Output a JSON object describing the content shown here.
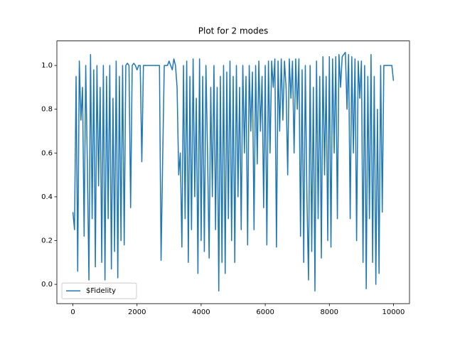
{
  "chart_data": {
    "type": "line",
    "title": "Plot for 2 modes",
    "x": [
      0,
      50,
      100,
      150,
      200,
      250,
      300,
      350,
      400,
      450,
      500,
      550,
      600,
      650,
      700,
      750,
      800,
      850,
      900,
      950,
      1000,
      1050,
      1100,
      1150,
      1200,
      1250,
      1300,
      1350,
      1400,
      1450,
      1500,
      1550,
      1600,
      1650,
      1700,
      1750,
      1800,
      1850,
      1900,
      1950,
      2000,
      2050,
      2100,
      2150,
      2200,
      2250,
      2300,
      2350,
      2400,
      2450,
      2500,
      2550,
      2600,
      2650,
      2700,
      2750,
      2800,
      2850,
      2900,
      2950,
      3000,
      3050,
      3100,
      3150,
      3200,
      3250,
      3300,
      3350,
      3400,
      3450,
      3500,
      3550,
      3600,
      3650,
      3700,
      3750,
      3800,
      3850,
      3900,
      3950,
      4000,
      4050,
      4100,
      4150,
      4200,
      4250,
      4300,
      4350,
      4400,
      4450,
      4500,
      4550,
      4600,
      4650,
      4700,
      4750,
      4800,
      4850,
      4900,
      4950,
      5000,
      5050,
      5100,
      5150,
      5200,
      5250,
      5300,
      5350,
      5400,
      5450,
      5500,
      5550,
      5600,
      5650,
      5700,
      5750,
      5800,
      5850,
      5900,
      5950,
      6000,
      6050,
      6100,
      6150,
      6200,
      6250,
      6300,
      6350,
      6400,
      6450,
      6500,
      6550,
      6600,
      6650,
      6700,
      6750,
      6800,
      6850,
      6900,
      6950,
      7000,
      7050,
      7100,
      7150,
      7200,
      7250,
      7300,
      7350,
      7400,
      7450,
      7500,
      7550,
      7600,
      7650,
      7700,
      7750,
      7800,
      7850,
      7900,
      7950,
      8000,
      8050,
      8100,
      8150,
      8200,
      8250,
      8300,
      8350,
      8400,
      8450,
      8500,
      8550,
      8600,
      8650,
      8700,
      8750,
      8800,
      8850,
      8900,
      8950,
      9000,
      9050,
      9100,
      9150,
      9200,
      9250,
      9300,
      9350,
      9400,
      9450,
      9500,
      9550,
      9600,
      9650,
      9700,
      9750,
      9800,
      9850,
      9900,
      9950,
      10000
    ],
    "series": [
      {
        "name": "$Fidelity",
        "color": "#1f77b4",
        "values": [
          0.33,
          0.25,
          0.95,
          0.06,
          1.02,
          0.75,
          0.9,
          0.22,
          1.0,
          0.55,
          0.02,
          1.05,
          0.3,
          0.98,
          0.08,
          1.0,
          0.45,
          0.9,
          0.1,
          1.0,
          0.02,
          0.95,
          0.3,
          1.0,
          0.07,
          0.85,
          0.15,
          1.02,
          0.03,
          0.95,
          0.2,
          1.0,
          0.18,
          1.0,
          1.01,
          1.0,
          0.35,
          1.0,
          1.01,
          1.0,
          0.98,
          1.0,
          1.0,
          0.56,
          1.0,
          1.0,
          1.0,
          1.0,
          1.0,
          1.0,
          1.0,
          1.0,
          1.0,
          1.0,
          1.0,
          0.11,
          0.57,
          1.0,
          1.0,
          1.0,
          1.02,
          1.0,
          0.98,
          1.03,
          1.0,
          0.9,
          0.5,
          0.6,
          0.17,
          1.0,
          0.3,
          1.02,
          0.1,
          0.95,
          0.25,
          1.03,
          0.4,
          0.85,
          0.05,
          1.03,
          0.2,
          0.95,
          0.15,
          1.0,
          0.6,
          0.12,
          0.9,
          0.4,
          1.0,
          0.25,
          0.9,
          -0.03,
          0.95,
          0.1,
          1.0,
          0.05,
          0.97,
          0.3,
          1.02,
          0.2,
          0.95,
          0.1,
          1.0,
          0.4,
          0.9,
          0.25,
          1.0,
          0.6,
          0.95,
          0.18,
          1.0,
          0.7,
          0.97,
          0.25,
          1.0,
          0.55,
          1.02,
          0.7,
          0.95,
          0.35,
          1.0,
          0.18,
          1.02,
          0.6,
          1.02,
          0.9,
          1.03,
          0.17,
          1.02,
          0.7,
          1.03,
          0.75,
          1.02,
          0.9,
          0.5,
          1.03,
          0.85,
          1.02,
          0.6,
          1.03,
          0.8,
          1.03,
          0.22,
          0.98,
          0.1,
          1.0,
          0.4,
          0.02,
          1.0,
          0.15,
          0.9,
          -0.03,
          1.02,
          0.3,
          0.95,
          0.12,
          1.04,
          0.5,
          0.95,
          0.2,
          1.04,
          0.17,
          1.03,
          0.6,
          1.04,
          0.3,
          1.05,
          0.9,
          1.04,
          1.05,
          1.06,
          0.8,
          1.05,
          0.3,
          1.04,
          0.6,
          1.03,
          0.2,
          1.02,
          0.85,
          1.02,
          0.1,
          1.0,
          -0.02,
          0.95,
          0.3,
          1.05,
          0.1,
          0.95,
          0.0,
          0.8,
          0.05,
          1.0,
          0.33,
          1.0,
          1.0,
          1.0,
          1.0,
          1.0,
          1.0,
          0.93
        ]
      }
    ],
    "xlim": [
      -500,
      10500
    ],
    "xticks": [
      0,
      2000,
      4000,
      6000,
      8000,
      10000
    ],
    "ylim": [
      -0.088,
      1.112
    ],
    "yticks": [
      {
        "value": 0,
        "label": "0.0"
      },
      0.2,
      0.4,
      0.6,
      0.8,
      {
        "value": 1,
        "label": "1.0"
      }
    ],
    "legend": "lower left"
  }
}
